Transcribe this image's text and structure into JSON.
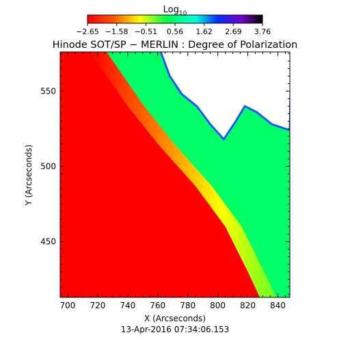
{
  "colorbar": {
    "label_main": "Log",
    "label_sub": "10",
    "ticks": [
      "−2.65",
      "−1.58",
      "−0.51",
      "0.56",
      "1.62",
      "2.69",
      "3.76"
    ],
    "range": [
      -2.65,
      3.76
    ]
  },
  "chart_data": {
    "type": "heatmap",
    "title": "Hinode SOT/SP − MERLIN : Degree of Polarization",
    "xlabel": "X (Arcseconds)",
    "ylabel": "Y (Arcseconds)",
    "xlim": [
      695,
      848
    ],
    "ylim": [
      413,
      576
    ],
    "x_ticks": [
      700,
      720,
      740,
      760,
      780,
      800,
      820,
      840
    ],
    "y_ticks": [
      450,
      500,
      550
    ],
    "timestamp": "13-Apr-2016 07:34:06.153",
    "limb_curve": [
      {
        "x": 715,
        "y": 576
      },
      {
        "x": 740,
        "y": 540
      },
      {
        "x": 760,
        "y": 515
      },
      {
        "x": 785,
        "y": 487
      },
      {
        "x": 805,
        "y": 460
      },
      {
        "x": 820,
        "y": 430
      },
      {
        "x": 828,
        "y": 413
      }
    ],
    "white_region_boundary": [
      {
        "x": 762,
        "y": 576
      },
      {
        "x": 768,
        "y": 560
      },
      {
        "x": 776,
        "y": 548
      },
      {
        "x": 786,
        "y": 540
      },
      {
        "x": 795,
        "y": 528
      },
      {
        "x": 804,
        "y": 518
      },
      {
        "x": 812,
        "y": 530
      },
      {
        "x": 818,
        "y": 540
      },
      {
        "x": 826,
        "y": 536
      },
      {
        "x": 836,
        "y": 528
      },
      {
        "x": 848,
        "y": 524
      }
    ],
    "colors": {
      "disk": "#ff0000",
      "limb": "#ffff00",
      "corona": "#00ff66",
      "high": "#0044ff",
      "background": "#ffffff"
    }
  }
}
